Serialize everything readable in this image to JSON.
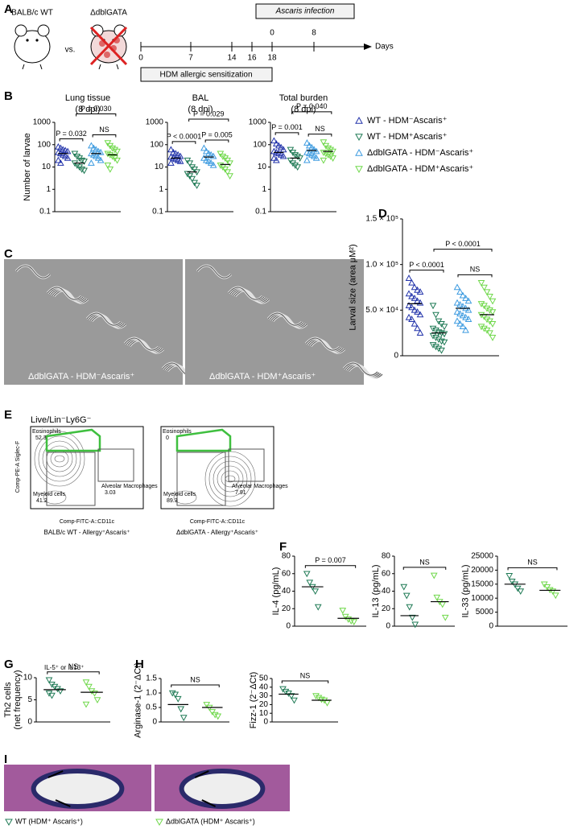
{
  "figure": {
    "panel_labels": [
      "A",
      "B",
      "C",
      "D",
      "E",
      "F",
      "G",
      "H",
      "I"
    ],
    "scheme": {
      "mouse_wt": "BALB/c WT",
      "vs": "vs.",
      "mouse_ko": "ΔdblGATA",
      "days": [
        "0",
        "7",
        "14",
        "16",
        "18"
      ],
      "days_label": "Days",
      "sensitization": "HDM allergic sensitization",
      "infection": "Ascaris infection",
      "infection_days": [
        "0",
        "8"
      ]
    },
    "micrographs": [
      "ΔdblGATA - HDM⁻Ascaris⁺",
      "ΔdblGATA - HDM⁺Ascaris⁺"
    ],
    "flow": {
      "title": "Live/Lin⁻Ly6G⁻",
      "y_axis": "Comp-PE-A Siglec-F",
      "x_axis": "Comp-FITC-A::CD11c",
      "plots": [
        {
          "caption": "BALB/c WT - Allergy⁺Ascaris⁺",
          "gates": [
            {
              "name": "Eosinophils",
              "value": 52.3
            },
            {
              "name": "Alveolar Macrophages",
              "value": 3.03
            },
            {
              "name": "Myeloid cells",
              "value": 41.2
            }
          ]
        },
        {
          "caption": "ΔdblGATA - Allergy⁺Ascaris⁺",
          "gates": [
            {
              "name": "Eosinophils",
              "value": 0
            },
            {
              "name": "Alveolar Macrophages",
              "value": 7.91
            },
            {
              "name": "Myeloid cells",
              "value": 89.3
            }
          ]
        }
      ]
    },
    "histology": [
      "WT (HDM⁺ Ascaris⁺)",
      "ΔdblGATA (HDM⁺ Ascaris⁺)"
    ]
  },
  "chart_data": [
    {
      "type": "dot",
      "title": "Lung tissue",
      "subtitle": "(8 dpi)",
      "ylabel": "Number of larvae",
      "yscale": "log",
      "ylim": [
        0.1,
        1000
      ],
      "yticks": [
        0.1,
        1,
        10,
        100,
        1000
      ],
      "series": [
        {
          "name": "WT - HDM⁻Ascaris⁺",
          "color": "#2233aa",
          "marker": "triangle-up",
          "values": [
            80,
            70,
            60,
            55,
            50,
            45,
            40,
            35,
            30,
            25,
            20,
            15
          ],
          "mean": 40
        },
        {
          "name": "WT - HDM⁺Ascaris⁺",
          "color": "#1f7a55",
          "marker": "triangle-down",
          "values": [
            40,
            30,
            25,
            20,
            18,
            15,
            12,
            10,
            8,
            7
          ],
          "mean": 15
        },
        {
          "name": "ΔdblGATA - HDM⁻Ascaris⁺",
          "color": "#3d9be0",
          "marker": "triangle-up",
          "values": [
            90,
            70,
            60,
            50,
            45,
            40,
            35,
            30,
            25,
            20,
            15
          ],
          "mean": 40
        },
        {
          "name": "ΔdblGATA - HDM⁺Ascaris⁺",
          "color": "#6fd84a",
          "marker": "triangle-down",
          "values": [
            120,
            90,
            70,
            60,
            50,
            40,
            35,
            30,
            25,
            20,
            12,
            8
          ],
          "mean": 35
        }
      ],
      "annotations": [
        {
          "label": "P = 0.032",
          "from": 0,
          "to": 1
        },
        {
          "label": "NS",
          "from": 2,
          "to": 3
        },
        {
          "label": "P = 0.030",
          "from": 1,
          "to": 3
        }
      ]
    },
    {
      "type": "dot",
      "title": "BAL",
      "subtitle": "(8 dpi)",
      "yscale": "log",
      "ylim": [
        0.1,
        1000
      ],
      "yticks": [
        0.1,
        1,
        10,
        100,
        1000
      ],
      "series": [
        {
          "color": "#2233aa",
          "marker": "triangle-up",
          "values": [
            60,
            45,
            40,
            35,
            30,
            28,
            25,
            22,
            20,
            18,
            15
          ],
          "mean": 25
        },
        {
          "color": "#1f7a55",
          "marker": "triangle-down",
          "values": [
            20,
            15,
            10,
            8,
            6,
            5,
            4,
            3,
            2,
            1.5
          ],
          "mean": 6
        },
        {
          "color": "#3d9be0",
          "marker": "triangle-up",
          "values": [
            70,
            50,
            40,
            35,
            30,
            25,
            20,
            18,
            15,
            12
          ],
          "mean": 28
        },
        {
          "color": "#6fd84a",
          "marker": "triangle-down",
          "values": [
            40,
            30,
            25,
            20,
            15,
            12,
            10,
            8,
            6,
            4
          ],
          "mean": 13
        }
      ],
      "annotations": [
        {
          "label": "P < 0.0001",
          "from": 0,
          "to": 1
        },
        {
          "label": "P = 0.005",
          "from": 2,
          "to": 3
        },
        {
          "label": "P = 0.029",
          "from": 1,
          "to": 3
        }
      ]
    },
    {
      "type": "dot",
      "title": "Total burden",
      "subtitle": "(8 dpi)",
      "yscale": "log",
      "ylim": [
        0.1,
        1000
      ],
      "yticks": [
        0.1,
        1,
        10,
        100,
        1000
      ],
      "series": [
        {
          "color": "#2233aa",
          "marker": "triangle-up",
          "values": [
            150,
            110,
            90,
            75,
            60,
            50,
            45,
            40,
            35,
            30,
            25,
            20
          ],
          "mean": 45
        },
        {
          "color": "#1f7a55",
          "marker": "triangle-down",
          "values": [
            60,
            45,
            35,
            30,
            25,
            20,
            15,
            12,
            10
          ],
          "mean": 25
        },
        {
          "color": "#3d9be0",
          "marker": "triangle-up",
          "values": [
            120,
            90,
            75,
            60,
            50,
            45,
            40,
            35,
            30,
            25,
            20
          ],
          "mean": 55
        },
        {
          "color": "#6fd84a",
          "marker": "triangle-down",
          "values": [
            130,
            90,
            70,
            60,
            50,
            45,
            40,
            35,
            30,
            25,
            20
          ],
          "mean": 50
        }
      ],
      "annotations": [
        {
          "label": "P = 0.001",
          "from": 0,
          "to": 1
        },
        {
          "label": "NS",
          "from": 2,
          "to": 3
        },
        {
          "label": "P = 0.040",
          "from": 1,
          "to": 3
        }
      ]
    },
    {
      "type": "dot",
      "ylabel": "Larval size (area μM²)",
      "ylim": [
        0,
        150000
      ],
      "yticks": [
        0,
        {
          "value": 50000,
          "label": "5.0 × 10⁴"
        },
        {
          "value": 100000,
          "label": "1.0 × 10⁵"
        },
        {
          "value": 150000,
          "label": "1.5 × 10⁵"
        }
      ],
      "series": [
        {
          "color": "#2233aa",
          "marker": "triangle-up",
          "values": [
            85000,
            80000,
            75000,
            72000,
            70000,
            68000,
            65000,
            63000,
            60000,
            58000,
            55000,
            53000,
            50000,
            48000,
            45000,
            42000,
            40000,
            35000,
            30000,
            25000
          ],
          "mean": 57000
        },
        {
          "color": "#1f7a55",
          "marker": "triangle-down",
          "values": [
            55000,
            45000,
            38000,
            35000,
            32000,
            30000,
            28000,
            26000,
            25000,
            24000,
            22000,
            20000,
            18000,
            16000,
            15000,
            12000,
            10000,
            8000,
            6000
          ],
          "mean": 25000
        },
        {
          "color": "#3d9be0",
          "marker": "triangle-up",
          "values": [
            75000,
            70000,
            66000,
            63000,
            60000,
            58000,
            56000,
            54000,
            52000,
            50000,
            48000,
            46000,
            44000,
            42000,
            40000,
            38000,
            35000,
            32000,
            28000
          ],
          "mean": 52000
        },
        {
          "color": "#6fd84a",
          "marker": "triangle-down",
          "values": [
            80000,
            75000,
            70000,
            65000,
            60000,
            57000,
            55000,
            52000,
            50000,
            48000,
            45000,
            43000,
            40000,
            38000,
            35000,
            32000,
            30000,
            28000,
            25000,
            20000
          ],
          "mean": 45000
        }
      ],
      "annotations": [
        {
          "label": "P < 0.0001",
          "from": 0,
          "to": 1
        },
        {
          "label": "NS",
          "from": 2,
          "to": 3
        },
        {
          "label": "P < 0.0001",
          "from": 1,
          "to": 3
        }
      ]
    },
    {
      "type": "dot",
      "ylabel": "IL-4 (pg/mL)",
      "ylim": [
        0,
        80
      ],
      "yticks": [
        0,
        20,
        40,
        60,
        80
      ],
      "series": [
        {
          "color": "#1f7a55",
          "marker": "triangle-down",
          "values": [
            60,
            50,
            45,
            40,
            22
          ],
          "mean": 45
        },
        {
          "color": "#6fd84a",
          "marker": "triangle-down",
          "values": [
            18,
            11,
            8,
            6,
            5
          ],
          "mean": 9
        }
      ],
      "annotations": [
        {
          "label": "P = 0.007",
          "from": 0,
          "to": 1
        }
      ]
    },
    {
      "type": "dot",
      "ylabel": "IL-13 (pg/mL)",
      "ylim": [
        0,
        80
      ],
      "yticks": [
        0,
        20,
        40,
        60,
        80
      ],
      "series": [
        {
          "color": "#1f7a55",
          "marker": "triangle-down",
          "values": [
            45,
            35,
            22,
            10,
            2
          ],
          "mean": 12
        },
        {
          "color": "#6fd84a",
          "marker": "triangle-down",
          "values": [
            58,
            33,
            28,
            25,
            10
          ],
          "mean": 28
        }
      ],
      "annotations": [
        {
          "label": "NS",
          "from": 0,
          "to": 1
        }
      ]
    },
    {
      "type": "dot",
      "ylabel": "IL-33 (pg/mL)",
      "ylim": [
        0,
        25000
      ],
      "yticks": [
        0,
        5000,
        10000,
        15000,
        20000,
        25000
      ],
      "series": [
        {
          "color": "#1f7a55",
          "marker": "triangle-down",
          "values": [
            18000,
            16000,
            15000,
            13500,
            12500
          ],
          "mean": 15000
        },
        {
          "color": "#6fd84a",
          "marker": "triangle-down",
          "values": [
            15000,
            14000,
            13000,
            12500,
            11000
          ],
          "mean": 12800
        }
      ],
      "annotations": [
        {
          "label": "NS",
          "from": 0,
          "to": 1
        }
      ]
    },
    {
      "type": "dot",
      "ylabel": [
        "Th2 cells",
        "(net frequency)"
      ],
      "note": "IL-5⁺ or IL13⁺",
      "ylim": [
        0,
        10
      ],
      "yticks": [
        0,
        5,
        10
      ],
      "series": [
        {
          "color": "#1f7a55",
          "marker": "triangle-down",
          "values": [
            9.5,
            8.5,
            8,
            7.5,
            7,
            6.5,
            6
          ],
          "mean": 7.3
        },
        {
          "color": "#6fd84a",
          "marker": "triangle-down",
          "values": [
            9,
            8,
            7,
            6.5,
            5,
            4
          ],
          "mean": 6.7
        }
      ],
      "annotations": [
        {
          "label": "NS",
          "from": 0,
          "to": 1
        }
      ]
    },
    {
      "type": "dot",
      "ylabel": "Arginase-1 (2⁻ΔCt)",
      "ylim": [
        0,
        1.5
      ],
      "yticks": [
        0,
        0.5,
        {
          "value": 1,
          "label": "1.0"
        },
        1.5
      ],
      "series": [
        {
          "color": "#1f7a55",
          "marker": "triangle-down",
          "values": [
            1.0,
            0.95,
            0.8,
            0.45,
            0.15
          ],
          "mean": 0.6
        },
        {
          "color": "#6fd84a",
          "marker": "triangle-down",
          "values": [
            0.6,
            0.5,
            0.35,
            0.25,
            0.2
          ],
          "mean": 0.5
        }
      ],
      "annotations": [
        {
          "label": "NS",
          "from": 0,
          "to": 1
        }
      ]
    },
    {
      "type": "dot",
      "ylabel": "Fizz-1 (2⁻ΔCt)",
      "ylim": [
        0,
        50
      ],
      "yticks": [
        0,
        10,
        20,
        30,
        40,
        50
      ],
      "series": [
        {
          "color": "#1f7a55",
          "marker": "triangle-down",
          "values": [
            38,
            35,
            33,
            30,
            25
          ],
          "mean": 32
        },
        {
          "color": "#6fd84a",
          "marker": "triangle-down",
          "values": [
            30,
            28,
            26,
            25,
            22
          ],
          "mean": 25
        }
      ],
      "annotations": [
        {
          "label": "NS",
          "from": 0,
          "to": 1
        }
      ]
    }
  ]
}
